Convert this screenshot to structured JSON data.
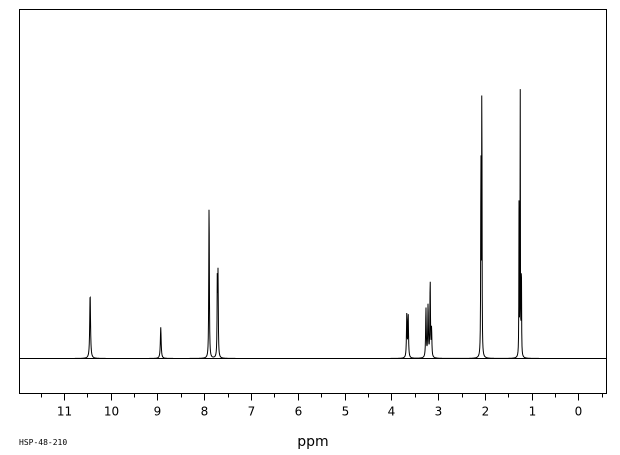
{
  "chart_data": {
    "type": "line",
    "title": "",
    "xlabel": "ppm",
    "ylabel": "",
    "xlim": [
      11.95,
      -0.6
    ],
    "ylim": [
      -0.12,
      1.0
    ],
    "x_reversed": true,
    "grid": false,
    "ticks": [
      {
        "value": 11,
        "label": "11"
      },
      {
        "value": 10,
        "label": "10"
      },
      {
        "value": 9,
        "label": "9"
      },
      {
        "value": 8,
        "label": "8"
      },
      {
        "value": 7,
        "label": "7"
      },
      {
        "value": 6,
        "label": "6"
      },
      {
        "value": 5,
        "label": "5"
      },
      {
        "value": 4,
        "label": "4"
      },
      {
        "value": 3,
        "label": "3"
      },
      {
        "value": 2,
        "label": "2"
      },
      {
        "value": 1,
        "label": "1"
      },
      {
        "value": 0,
        "label": "0"
      }
    ],
    "peaks": [
      {
        "x": 10.44,
        "y": 0.205,
        "w": 0.01
      },
      {
        "x": 8.93,
        "y": 0.098,
        "w": 0.01
      },
      {
        "x": 7.895,
        "y": 0.31,
        "w": 0.006
      },
      {
        "x": 7.9,
        "y": 0.25,
        "w": 0.006
      },
      {
        "x": 7.72,
        "y": 0.27,
        "w": 0.006
      },
      {
        "x": 7.705,
        "y": 0.25,
        "w": 0.006
      },
      {
        "x": 3.67,
        "y": 0.135,
        "w": 0.008
      },
      {
        "x": 3.64,
        "y": 0.135,
        "w": 0.008
      },
      {
        "x": 3.26,
        "y": 0.155,
        "w": 0.008
      },
      {
        "x": 3.215,
        "y": 0.165,
        "w": 0.008
      },
      {
        "x": 3.17,
        "y": 0.245,
        "w": 0.007
      },
      {
        "x": 3.14,
        "y": 0.09,
        "w": 0.007
      },
      {
        "x": 2.085,
        "y": 0.67,
        "w": 0.005
      },
      {
        "x": 2.065,
        "y": 1.0,
        "w": 0.004
      },
      {
        "x": 1.27,
        "y": 0.49,
        "w": 0.004
      },
      {
        "x": 1.245,
        "y": 0.875,
        "w": 0.004
      },
      {
        "x": 1.22,
        "y": 0.34,
        "w": 0.004
      }
    ]
  },
  "footer": {
    "sample_id": "HSP-48-210"
  },
  "colors": {
    "line": "#000000",
    "background": "#ffffff"
  }
}
